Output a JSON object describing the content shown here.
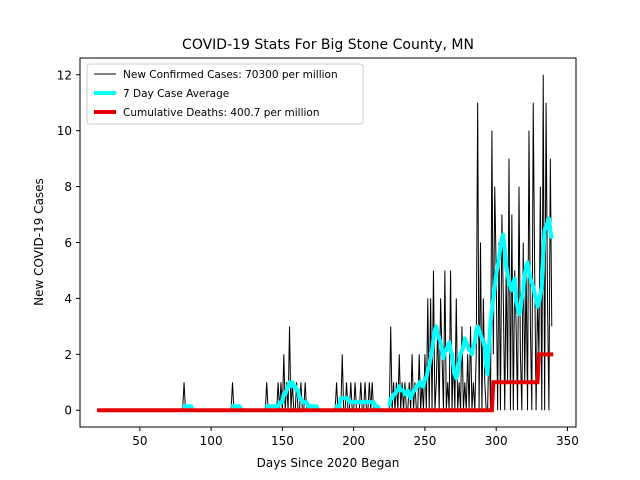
{
  "chart_data": {
    "type": "line",
    "title": "COVID-19 Stats For Big Stone County, MN",
    "xlabel": "Days Since 2020 Began",
    "ylabel": "New COVID-19 Cases",
    "xlim": [
      8,
      356
    ],
    "ylim": [
      -0.6,
      12.6
    ],
    "xticks": [
      50,
      100,
      150,
      200,
      250,
      300,
      350
    ],
    "yticks": [
      0,
      2,
      4,
      6,
      8,
      10,
      12
    ],
    "grid": false,
    "legend_position": "top-left",
    "series": [
      {
        "name": "New Confirmed Cases: 70300 per million",
        "color": "#000000",
        "x": [
          20,
          80,
          81,
          82,
          83,
          114,
          115,
          116,
          117,
          138,
          139,
          140,
          146,
          147,
          148,
          149,
          150,
          151,
          152,
          153,
          154,
          155,
          156,
          157,
          158,
          159,
          160,
          161,
          162,
          163,
          164,
          165,
          166,
          167,
          168,
          169,
          170,
          187,
          188,
          189,
          190,
          191,
          192,
          193,
          194,
          195,
          196,
          197,
          198,
          199,
          200,
          201,
          202,
          203,
          204,
          205,
          206,
          207,
          208,
          209,
          210,
          211,
          212,
          213,
          214,
          225,
          226,
          227,
          228,
          229,
          230,
          231,
          232,
          233,
          234,
          235,
          236,
          237,
          238,
          239,
          240,
          241,
          242,
          243,
          244,
          245,
          246,
          247,
          248,
          249,
          250,
          251,
          252,
          253,
          254,
          255,
          256,
          257,
          258,
          259,
          260,
          261,
          262,
          263,
          264,
          265,
          266,
          267,
          268,
          269,
          270,
          271,
          272,
          273,
          274,
          275,
          276,
          277,
          278,
          279,
          280,
          281,
          282,
          283,
          284,
          285,
          286,
          287,
          288,
          289,
          290,
          291,
          292,
          293,
          294,
          295,
          296,
          297,
          298,
          299,
          300,
          301,
          302,
          303,
          304,
          305,
          306,
          307,
          308,
          309,
          310,
          311,
          312,
          313,
          314,
          315,
          316,
          317,
          318,
          319,
          320,
          321,
          322,
          323,
          324,
          325,
          326,
          327,
          328,
          329,
          330,
          331,
          332,
          333,
          334,
          335,
          336,
          337,
          338,
          339
        ],
        "y": [
          0,
          0,
          1,
          0,
          0,
          0,
          1,
          0,
          0,
          0,
          1,
          0,
          0,
          1,
          0,
          1,
          0,
          2,
          0,
          1,
          0,
          3,
          0,
          1,
          0,
          0,
          1,
          0,
          0,
          1,
          0,
          0,
          1,
          0,
          0,
          0,
          0,
          0,
          1,
          0,
          0,
          0,
          2,
          0,
          0,
          1,
          0,
          0,
          1,
          0,
          0,
          1,
          0,
          0,
          0,
          1,
          0,
          0,
          1,
          0,
          0,
          1,
          0,
          1,
          0,
          0,
          3,
          0,
          1,
          0,
          1,
          0,
          2,
          0,
          1,
          0,
          1,
          0,
          0,
          1,
          0,
          2,
          0,
          1,
          0,
          0,
          2,
          0,
          1,
          0,
          2,
          0,
          4,
          0,
          4,
          0,
          5,
          0,
          1,
          3,
          0,
          4,
          2,
          0,
          5,
          0,
          1,
          0,
          5,
          0,
          2,
          0,
          4,
          0,
          1,
          0,
          3,
          0,
          1,
          0,
          2,
          0,
          3,
          0,
          1,
          0,
          2,
          11,
          0,
          6,
          0,
          4,
          1,
          0,
          0,
          3,
          0,
          10,
          2,
          8,
          5,
          0,
          6,
          0,
          7,
          4,
          0,
          5,
          1,
          9,
          0,
          7,
          0,
          5,
          3,
          0,
          8,
          2,
          0,
          6,
          1,
          5,
          0,
          10,
          3,
          0,
          11,
          5,
          0,
          4,
          2,
          8,
          0,
          12,
          0,
          11,
          4,
          0,
          9,
          3
        ]
      },
      {
        "name": "7 Day Case Average",
        "color": "#00ffff",
        "segments": [
          {
            "x": [
              80,
              81,
              82,
              83,
              84,
              85,
              86,
              87
            ],
            "y": [
              0.14,
              0.14,
              0.14,
              0.14,
              0.14,
              0.14,
              0.14,
              0
            ]
          },
          {
            "x": [
              114,
              115,
              116,
              117,
              118,
              119,
              120,
              121
            ],
            "y": [
              0.14,
              0.14,
              0.14,
              0.14,
              0.14,
              0.14,
              0.14,
              0
            ]
          },
          {
            "x": [
              138,
              139,
              140,
              141,
              142,
              143,
              144,
              145,
              146,
              147,
              148,
              149,
              150,
              151,
              152,
              153,
              154,
              155,
              156,
              157,
              158,
              159,
              160,
              161,
              162,
              163,
              164,
              165,
              166,
              167,
              168,
              169,
              170,
              171,
              172,
              173,
              174,
              175
            ],
            "y": [
              0.14,
              0.14,
              0.14,
              0.14,
              0.14,
              0.14,
              0.14,
              0.14,
              0.14,
              0.14,
              0.28,
              0.28,
              0.28,
              0.57,
              0.57,
              0.71,
              0.86,
              1.0,
              0.86,
              1.0,
              0.86,
              0.86,
              0.71,
              0.71,
              0.43,
              0.43,
              0.29,
              0.29,
              0.29,
              0.29,
              0.14,
              0.14,
              0.14,
              0.14,
              0.14,
              0,
              0.14,
              0
            ]
          },
          {
            "x": [
              187,
              188,
              189,
              190,
              191,
              192,
              193,
              194,
              195,
              196,
              197,
              198,
              199,
              200,
              201,
              202,
              203,
              204,
              205,
              206,
              207,
              208,
              209,
              210,
              211,
              212,
              213,
              214,
              215,
              216,
              217,
              218,
              219,
              220,
              221
            ],
            "y": [
              0.14,
              0.14,
              0.14,
              0.14,
              0.43,
              0.43,
              0.43,
              0.43,
              0.43,
              0.43,
              0.29,
              0.29,
              0.29,
              0.29,
              0.29,
              0.29,
              0.29,
              0.29,
              0.29,
              0.29,
              0.29,
              0.29,
              0.29,
              0.29,
              0.29,
              0.29,
              0.29,
              0.29,
              0.14,
              0.14,
              0.14,
              0,
              0,
              0,
              0
            ]
          },
          {
            "x": [
              225,
              226,
              227,
              228,
              229,
              230,
              231,
              232,
              233,
              234,
              235,
              236,
              237,
              238,
              239,
              240,
              241,
              242,
              243,
              244,
              245,
              246,
              247,
              248,
              249,
              250,
              251,
              252,
              253,
              254,
              255,
              256,
              257,
              258,
              259,
              260,
              261,
              262,
              263,
              264,
              265,
              266,
              267,
              268,
              269,
              270,
              271,
              272,
              273,
              274,
              275,
              276,
              277,
              278,
              279,
              280,
              281,
              282,
              283,
              284,
              285,
              286,
              287,
              288,
              289,
              290,
              291,
              292,
              293,
              294,
              295,
              296,
              297,
              298,
              299,
              300,
              301,
              302,
              303,
              304,
              305,
              306,
              307,
              308,
              309,
              310,
              311,
              312,
              313,
              314,
              315,
              316,
              317,
              318,
              319,
              320,
              321,
              322,
              323,
              324,
              325,
              326,
              327,
              328,
              329,
              330,
              331,
              332,
              333,
              334,
              335,
              336,
              337,
              338,
              339
            ],
            "y": [
              0.14,
              0.43,
              0.43,
              0.57,
              0.57,
              0.71,
              0.71,
              0.86,
              0.71,
              0.71,
              0.71,
              0.57,
              0.57,
              0.71,
              0.57,
              0.43,
              0.57,
              0.71,
              0.71,
              0.86,
              0.86,
              1.0,
              1.0,
              0.86,
              0.86,
              1.14,
              1.14,
              1.43,
              1.57,
              1.86,
              2.14,
              2.57,
              2.86,
              3.0,
              2.71,
              2.57,
              2.43,
              2.14,
              1.86,
              2.14,
              2.14,
              2.29,
              2.43,
              2.14,
              2.0,
              1.57,
              1.29,
              1.14,
              1.29,
              1.71,
              2.0,
              2.14,
              2.29,
              2.57,
              2.43,
              2.29,
              2.14,
              2.14,
              2.0,
              2.29,
              2.43,
              2.86,
              3.0,
              2.86,
              2.71,
              2.57,
              2.43,
              2.29,
              1.57,
              1.29,
              2.29,
              3.14,
              3.57,
              4.0,
              4.43,
              4.86,
              5.14,
              5.43,
              5.86,
              6.14,
              6.29,
              5.71,
              5.14,
              4.86,
              4.57,
              4.43,
              4.29,
              4.57,
              4.71,
              3.86,
              3.71,
              3.43,
              3.57,
              4.0,
              4.29,
              4.86,
              5.14,
              5.29,
              5.0,
              4.71,
              4.57,
              4.43,
              4.14,
              4.0,
              3.71,
              3.86,
              4.14,
              4.43,
              5.57,
              6.43,
              6.57,
              6.71,
              6.86,
              6.43,
              6.14
            ]
          }
        ]
      },
      {
        "name": "Cumulative Deaths: 400.7 per million",
        "color": "#e60000",
        "x": [
          20,
          297,
          298,
          329,
          330,
          340
        ],
        "y": [
          0,
          0,
          1,
          1,
          2,
          2
        ]
      }
    ]
  }
}
